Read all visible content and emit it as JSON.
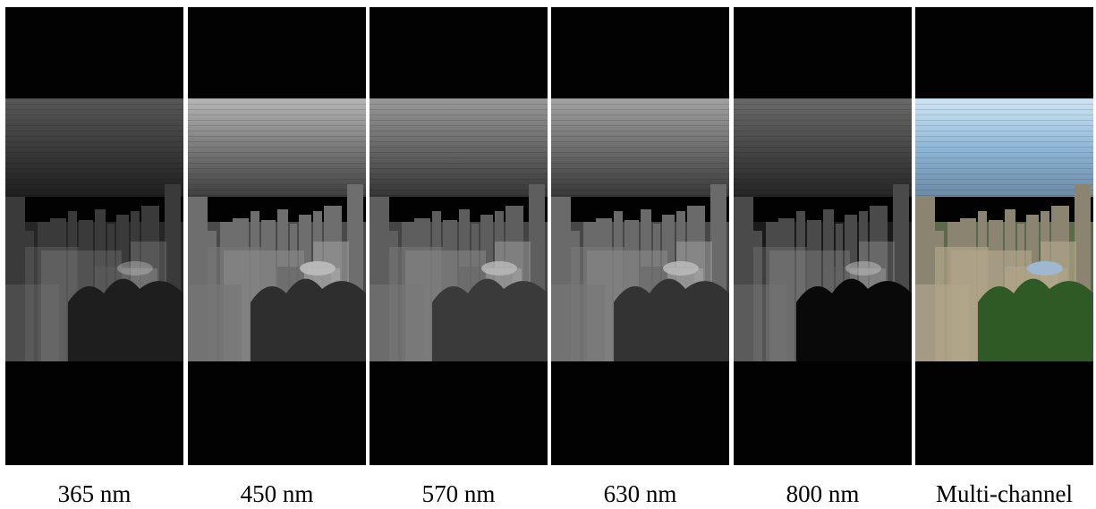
{
  "panels": [
    {
      "label": "365 nm"
    },
    {
      "label": "450 nm"
    },
    {
      "label": "570 nm"
    },
    {
      "label": "630 nm"
    },
    {
      "label": "800 nm"
    },
    {
      "label": "Multi-channel"
    }
  ]
}
